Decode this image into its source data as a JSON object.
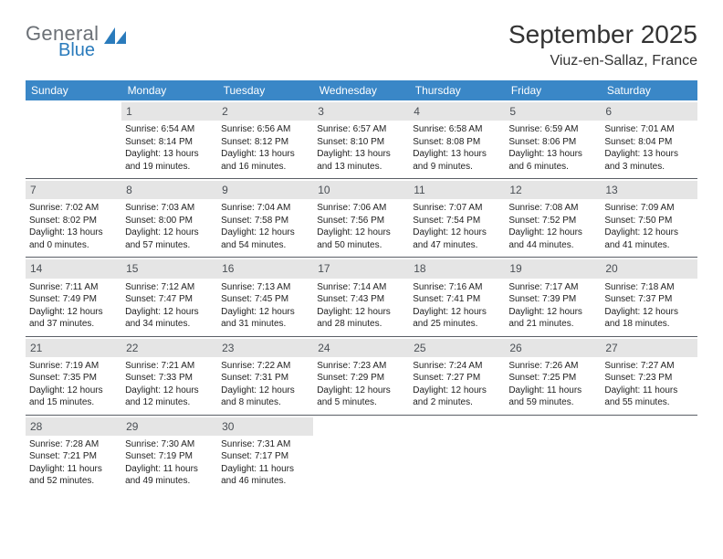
{
  "brand": {
    "word1": "General",
    "word2": "Blue",
    "color_general": "#6b7076",
    "color_blue": "#2a7bbc",
    "icon_color": "#2a7bbc"
  },
  "title": "September 2025",
  "location": "Viuz-en-Sallaz, France",
  "header_bg": "#3a87c7",
  "header_text_color": "#ffffff",
  "day_bar_bg": "#e5e5e5",
  "day_bar_text": "#4a4f55",
  "row_border_color": "#5a5f66",
  "weekdays": [
    "Sunday",
    "Monday",
    "Tuesday",
    "Wednesday",
    "Thursday",
    "Friday",
    "Saturday"
  ],
  "weeks": [
    [
      null,
      {
        "day": "1",
        "sunrise": "Sunrise: 6:54 AM",
        "sunset": "Sunset: 8:14 PM",
        "daylight": "Daylight: 13 hours and 19 minutes."
      },
      {
        "day": "2",
        "sunrise": "Sunrise: 6:56 AM",
        "sunset": "Sunset: 8:12 PM",
        "daylight": "Daylight: 13 hours and 16 minutes."
      },
      {
        "day": "3",
        "sunrise": "Sunrise: 6:57 AM",
        "sunset": "Sunset: 8:10 PM",
        "daylight": "Daylight: 13 hours and 13 minutes."
      },
      {
        "day": "4",
        "sunrise": "Sunrise: 6:58 AM",
        "sunset": "Sunset: 8:08 PM",
        "daylight": "Daylight: 13 hours and 9 minutes."
      },
      {
        "day": "5",
        "sunrise": "Sunrise: 6:59 AM",
        "sunset": "Sunset: 8:06 PM",
        "daylight": "Daylight: 13 hours and 6 minutes."
      },
      {
        "day": "6",
        "sunrise": "Sunrise: 7:01 AM",
        "sunset": "Sunset: 8:04 PM",
        "daylight": "Daylight: 13 hours and 3 minutes."
      }
    ],
    [
      {
        "day": "7",
        "sunrise": "Sunrise: 7:02 AM",
        "sunset": "Sunset: 8:02 PM",
        "daylight": "Daylight: 13 hours and 0 minutes."
      },
      {
        "day": "8",
        "sunrise": "Sunrise: 7:03 AM",
        "sunset": "Sunset: 8:00 PM",
        "daylight": "Daylight: 12 hours and 57 minutes."
      },
      {
        "day": "9",
        "sunrise": "Sunrise: 7:04 AM",
        "sunset": "Sunset: 7:58 PM",
        "daylight": "Daylight: 12 hours and 54 minutes."
      },
      {
        "day": "10",
        "sunrise": "Sunrise: 7:06 AM",
        "sunset": "Sunset: 7:56 PM",
        "daylight": "Daylight: 12 hours and 50 minutes."
      },
      {
        "day": "11",
        "sunrise": "Sunrise: 7:07 AM",
        "sunset": "Sunset: 7:54 PM",
        "daylight": "Daylight: 12 hours and 47 minutes."
      },
      {
        "day": "12",
        "sunrise": "Sunrise: 7:08 AM",
        "sunset": "Sunset: 7:52 PM",
        "daylight": "Daylight: 12 hours and 44 minutes."
      },
      {
        "day": "13",
        "sunrise": "Sunrise: 7:09 AM",
        "sunset": "Sunset: 7:50 PM",
        "daylight": "Daylight: 12 hours and 41 minutes."
      }
    ],
    [
      {
        "day": "14",
        "sunrise": "Sunrise: 7:11 AM",
        "sunset": "Sunset: 7:49 PM",
        "daylight": "Daylight: 12 hours and 37 minutes."
      },
      {
        "day": "15",
        "sunrise": "Sunrise: 7:12 AM",
        "sunset": "Sunset: 7:47 PM",
        "daylight": "Daylight: 12 hours and 34 minutes."
      },
      {
        "day": "16",
        "sunrise": "Sunrise: 7:13 AM",
        "sunset": "Sunset: 7:45 PM",
        "daylight": "Daylight: 12 hours and 31 minutes."
      },
      {
        "day": "17",
        "sunrise": "Sunrise: 7:14 AM",
        "sunset": "Sunset: 7:43 PM",
        "daylight": "Daylight: 12 hours and 28 minutes."
      },
      {
        "day": "18",
        "sunrise": "Sunrise: 7:16 AM",
        "sunset": "Sunset: 7:41 PM",
        "daylight": "Daylight: 12 hours and 25 minutes."
      },
      {
        "day": "19",
        "sunrise": "Sunrise: 7:17 AM",
        "sunset": "Sunset: 7:39 PM",
        "daylight": "Daylight: 12 hours and 21 minutes."
      },
      {
        "day": "20",
        "sunrise": "Sunrise: 7:18 AM",
        "sunset": "Sunset: 7:37 PM",
        "daylight": "Daylight: 12 hours and 18 minutes."
      }
    ],
    [
      {
        "day": "21",
        "sunrise": "Sunrise: 7:19 AM",
        "sunset": "Sunset: 7:35 PM",
        "daylight": "Daylight: 12 hours and 15 minutes."
      },
      {
        "day": "22",
        "sunrise": "Sunrise: 7:21 AM",
        "sunset": "Sunset: 7:33 PM",
        "daylight": "Daylight: 12 hours and 12 minutes."
      },
      {
        "day": "23",
        "sunrise": "Sunrise: 7:22 AM",
        "sunset": "Sunset: 7:31 PM",
        "daylight": "Daylight: 12 hours and 8 minutes."
      },
      {
        "day": "24",
        "sunrise": "Sunrise: 7:23 AM",
        "sunset": "Sunset: 7:29 PM",
        "daylight": "Daylight: 12 hours and 5 minutes."
      },
      {
        "day": "25",
        "sunrise": "Sunrise: 7:24 AM",
        "sunset": "Sunset: 7:27 PM",
        "daylight": "Daylight: 12 hours and 2 minutes."
      },
      {
        "day": "26",
        "sunrise": "Sunrise: 7:26 AM",
        "sunset": "Sunset: 7:25 PM",
        "daylight": "Daylight: 11 hours and 59 minutes."
      },
      {
        "day": "27",
        "sunrise": "Sunrise: 7:27 AM",
        "sunset": "Sunset: 7:23 PM",
        "daylight": "Daylight: 11 hours and 55 minutes."
      }
    ],
    [
      {
        "day": "28",
        "sunrise": "Sunrise: 7:28 AM",
        "sunset": "Sunset: 7:21 PM",
        "daylight": "Daylight: 11 hours and 52 minutes."
      },
      {
        "day": "29",
        "sunrise": "Sunrise: 7:30 AM",
        "sunset": "Sunset: 7:19 PM",
        "daylight": "Daylight: 11 hours and 49 minutes."
      },
      {
        "day": "30",
        "sunrise": "Sunrise: 7:31 AM",
        "sunset": "Sunset: 7:17 PM",
        "daylight": "Daylight: 11 hours and 46 minutes."
      },
      null,
      null,
      null,
      null
    ]
  ]
}
